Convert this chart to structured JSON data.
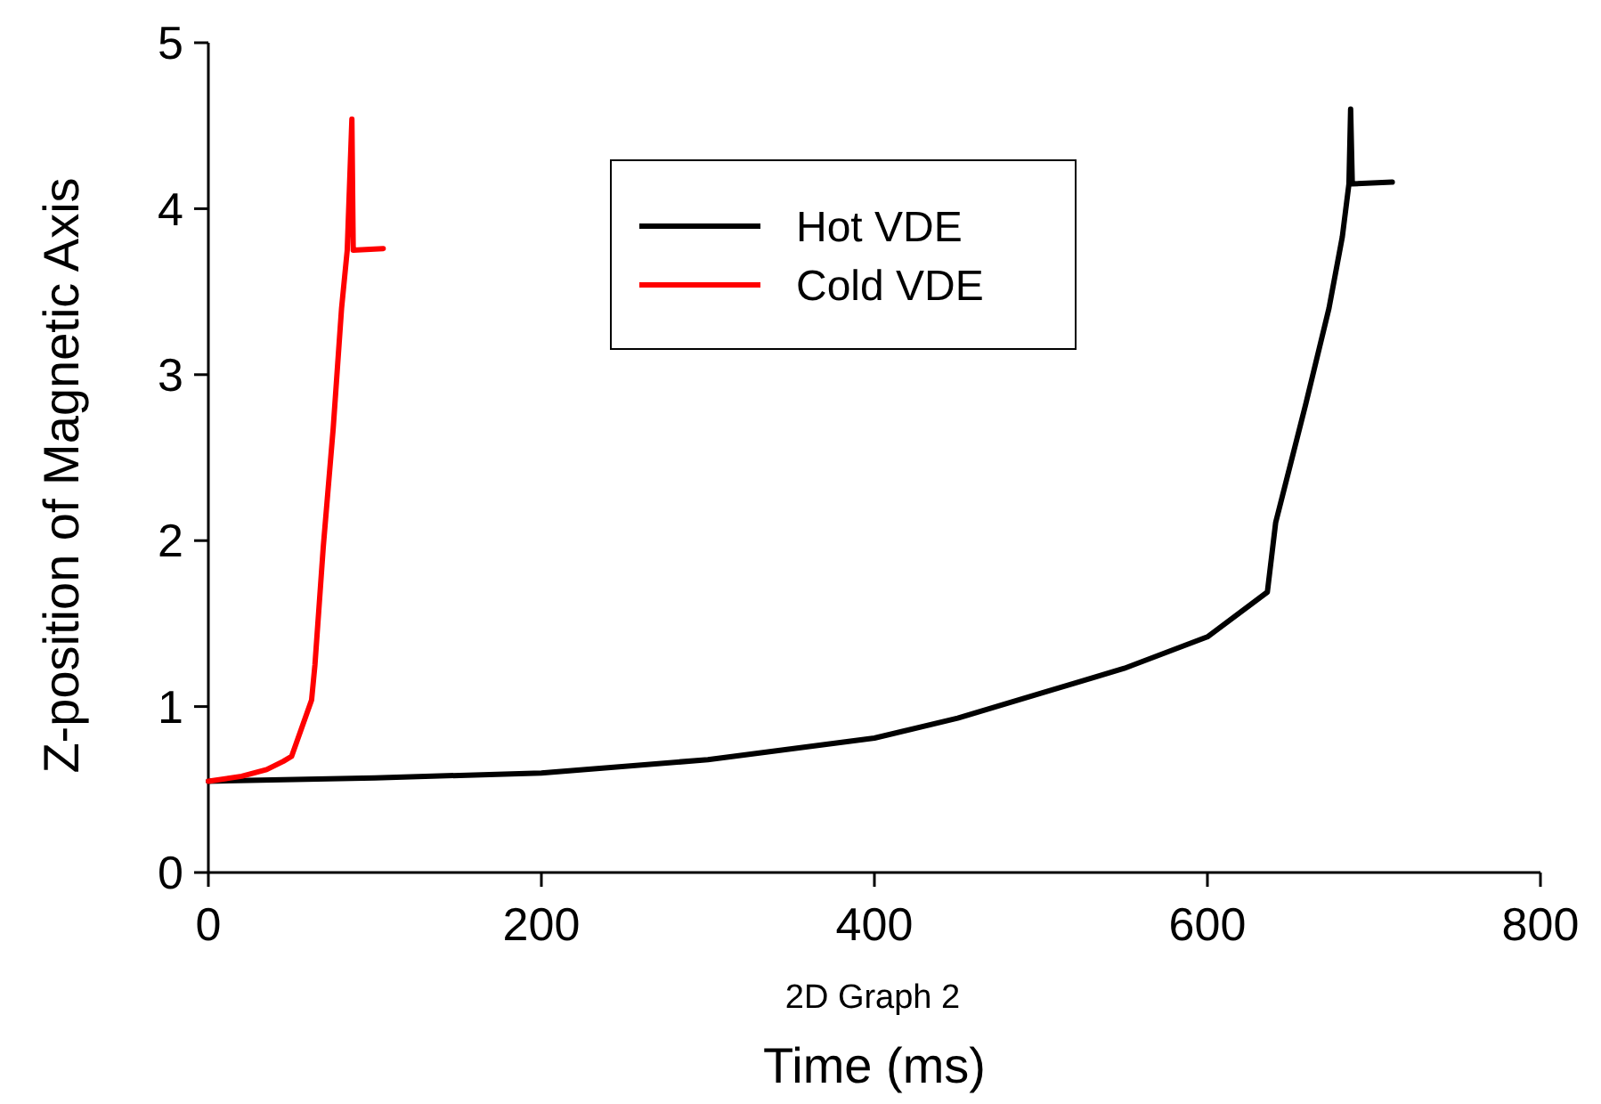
{
  "chart_data": {
    "type": "line",
    "xlabel": "Time (ms)",
    "ylabel": "Z-position of Magnetic Axis",
    "xlim": [
      0,
      800
    ],
    "xticks": [
      0,
      200,
      400,
      600,
      800
    ],
    "ylim": [
      0,
      5
    ],
    "yticks": [
      0,
      1,
      2,
      3,
      4,
      5
    ],
    "grid": false,
    "legend": "top",
    "line_style": "solid",
    "marker": "none",
    "annotations": [
      "2D Graph 2"
    ],
    "series": [
      {
        "name": "Hot VDE",
        "color": "#000000",
        "x": [
          0,
          100,
          200,
          300,
          400,
          450,
          500,
          550,
          600,
          636,
          641,
          659,
          673,
          681,
          685,
          686,
          687,
          711
        ],
        "values": [
          0.55,
          0.57,
          0.6,
          0.68,
          0.81,
          0.93,
          1.08,
          1.23,
          1.42,
          1.69,
          2.11,
          2.82,
          3.4,
          3.83,
          4.15,
          4.6,
          4.15,
          4.16
        ]
      },
      {
        "name": "Cold VDE",
        "color": "#ff0000",
        "x": [
          0,
          20,
          35,
          45,
          50,
          62,
          64,
          69,
          75,
          80,
          83.4,
          86.2,
          87,
          105
        ],
        "values": [
          0.55,
          0.58,
          0.62,
          0.67,
          0.7,
          1.04,
          1.25,
          1.96,
          2.68,
          3.4,
          3.75,
          4.54,
          3.75,
          3.76
        ]
      }
    ]
  }
}
